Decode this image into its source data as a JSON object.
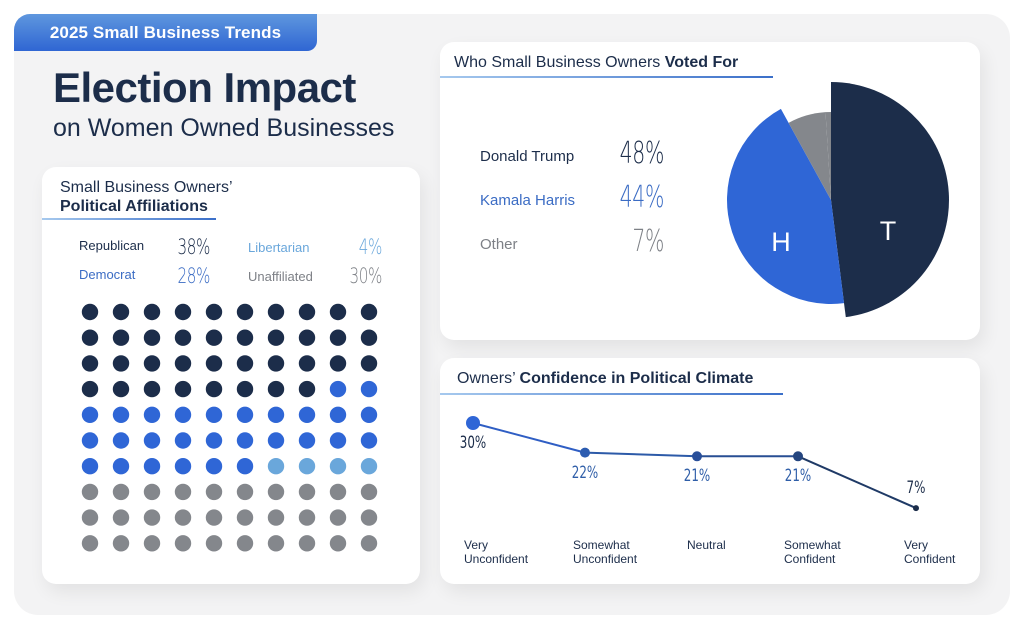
{
  "header": {
    "badge": "2025 Small Business Trends",
    "title": "Election Impact",
    "subtitle": "on Women Owned Businesses"
  },
  "colors": {
    "navy": "#1c2d4a",
    "blue": "#2f66d6",
    "light_blue": "#6aa7db",
    "grey": "#84878c",
    "harris_text": "#3b6cc4",
    "other_text": "#7d8086"
  },
  "affiliations": {
    "heading_regular": "Small Business Owners’",
    "heading_bold": "Political Affiliations",
    "legend": [
      {
        "label": "Republican",
        "value": "38%",
        "color": "#1c2d4a"
      },
      {
        "label": "Democrat",
        "value": "28%",
        "color": "#3b6cc4"
      },
      {
        "label": "Libertarian",
        "value": "4%",
        "color": "#6aa7db"
      },
      {
        "label": "Unaffiliated",
        "value": "30%",
        "color": "#7d8086"
      }
    ]
  },
  "vote": {
    "heading_regular": "Who Small Business Owners ",
    "heading_bold": "Voted For",
    "legend": [
      {
        "label": "Donald Trump",
        "value": "48%",
        "color": "#1c2d4a"
      },
      {
        "label": "Kamala Harris",
        "value": "44%",
        "color": "#3b6cc4"
      },
      {
        "label": "Other",
        "value": "7%",
        "color": "#7d8086"
      }
    ],
    "pie_letters": {
      "trump": "T",
      "harris": "H"
    }
  },
  "confidence": {
    "heading_regular": "Owners’ ",
    "heading_bold": "Confidence in Political Climate"
  },
  "chart_data": [
    {
      "type": "waffle",
      "title": "Small Business Owners’ Political Affiliations",
      "grid": {
        "rows": 10,
        "cols": 10
      },
      "categories": [
        "Republican",
        "Democrat",
        "Libertarian",
        "Unaffiliated"
      ],
      "values": [
        38,
        28,
        4,
        30
      ],
      "colors": [
        "#1c2d4a",
        "#2f66d6",
        "#6aa7db",
        "#84878c"
      ]
    },
    {
      "type": "pie",
      "title": "Who Small Business Owners Voted For",
      "categories": [
        "Donald Trump",
        "Kamala Harris",
        "Other"
      ],
      "values": [
        48,
        44,
        7
      ],
      "labels": [
        "T",
        "H",
        ""
      ],
      "colors": [
        "#1c2d4a",
        "#2f66d6",
        "#84878c"
      ]
    },
    {
      "type": "line",
      "title": "Owners’ Confidence in Political Climate",
      "categories": [
        "Very Unconfident",
        "Somewhat Unconfident",
        "Neutral",
        "Somewhat Confident",
        "Very Confident"
      ],
      "category_lines": [
        [
          "Very",
          "Unconfident"
        ],
        [
          "Somewhat",
          "Unconfident"
        ],
        [
          "Neutral"
        ],
        [
          "Somewhat",
          "Confident"
        ],
        [
          "Very",
          "Confident"
        ]
      ],
      "values": [
        30,
        22,
        21,
        21,
        7
      ],
      "data_labels": [
        "30%",
        "22%",
        "21%",
        "21%",
        "7%"
      ],
      "label_colors": [
        "#1c2d4a",
        "#2f5ea8",
        "#2f5ea8",
        "#2f5ea8",
        "#1c2d4a"
      ],
      "marker_colors": [
        "#2f66d6",
        "#2c5cb0",
        "#294f9a",
        "#24457f",
        "#1c2d4a"
      ],
      "ylim": [
        0,
        35
      ],
      "grid": false,
      "xlabel": "",
      "ylabel": ""
    }
  ]
}
